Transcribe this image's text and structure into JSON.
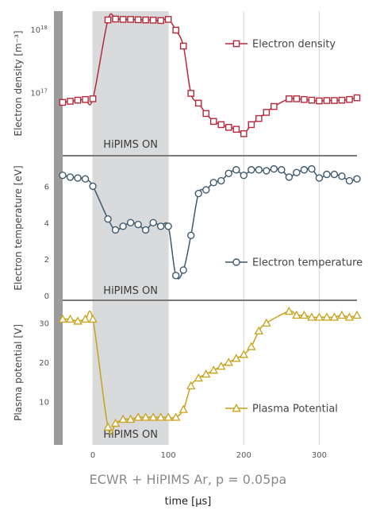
{
  "footer": {
    "title": "ECWR + HiPIMS Ar, p = 0.05pa",
    "xlabel": "time [µs]"
  },
  "chart_data": {
    "type": "line",
    "x_axis": {
      "label": "time [µs]",
      "range": [
        -40,
        350
      ],
      "ticks": [
        0,
        100,
        200,
        300
      ],
      "tick_labels": [
        "0",
        "100",
        "200",
        "300"
      ],
      "grid": true
    },
    "shaded_region": {
      "x": [
        0,
        100
      ],
      "label": "HiPIMS ON",
      "color": "#d9dadc"
    },
    "panels": [
      {
        "id": "density",
        "ylabel": "Electron density [m⁻³]",
        "yscale": "log",
        "ylim": [
          13000000000000000,
          2000000000000000000
        ],
        "yticks": [
          100000000000000000,
          1000000000000000000
        ],
        "ytick_labels": [
          {
            "base": "10",
            "exp": "17"
          },
          {
            "base": "10",
            "exp": "18"
          }
        ],
        "legend_position": "top-right",
        "shade_label": "HiPIMS ON",
        "series": [
          {
            "name": "Electron density",
            "color": "#b5293b",
            "marker": "square",
            "x": [
              -40,
              -30,
              -20,
              -10,
              0,
              20,
              30,
              40,
              50,
              60,
              70,
              80,
              90,
              100,
              110,
              120,
              130,
              140,
              150,
              160,
              170,
              180,
              190,
              200,
              210,
              220,
              230,
              240,
              260,
              270,
              280,
              290,
              300,
              310,
              320,
              330,
              340,
              350
            ],
            "y": [
              72000000000000000,
              75000000000000000,
              78000000000000000,
              80000000000000000,
              82000000000000000,
              1450000000000000000,
              1500000000000000000,
              1480000000000000000,
              1480000000000000000,
              1460000000000000000,
              1450000000000000000,
              1440000000000000000,
              1420000000000000000,
              1480000000000000000,
              1000000000000000000,
              560000000000000000,
              100000000000000000,
              70000000000000000,
              48000000000000000,
              36000000000000000,
              32000000000000000,
              29000000000000000,
              27000000000000000,
              23000000000000000,
              32000000000000000,
              40000000000000000,
              50000000000000000,
              62000000000000000,
              82000000000000000,
              82000000000000000,
              80000000000000000,
              78000000000000000,
              76000000000000000,
              77000000000000000,
              77000000000000000,
              78000000000000000,
              80000000000000000,
              85000000000000000
            ]
          }
        ]
      },
      {
        "id": "temperature",
        "ylabel": "Electron temperature [eV]",
        "yscale": "linear",
        "ylim": [
          0,
          7.5
        ],
        "yticks": [
          0,
          2,
          4,
          6
        ],
        "ytick_labels": [
          "0",
          "2",
          "4",
          "6"
        ],
        "legend_position": "bottom-right",
        "shade_label": "HiPIMS ON",
        "series": [
          {
            "name": "Electron temperature",
            "color": "#3d5a6e",
            "marker": "circle",
            "x": [
              -40,
              -30,
              -20,
              -10,
              0,
              20,
              30,
              40,
              50,
              60,
              70,
              80,
              90,
              100,
              110,
              120,
              130,
              140,
              150,
              160,
              170,
              180,
              190,
              200,
              210,
              220,
              230,
              240,
              250,
              260,
              270,
              280,
              290,
              300,
              310,
              320,
              330,
              340,
              350
            ],
            "y": [
              6.6,
              6.5,
              6.45,
              6.4,
              6.0,
              4.2,
              3.6,
              3.8,
              4.0,
              3.9,
              3.6,
              4.0,
              3.8,
              3.8,
              1.1,
              1.4,
              3.3,
              5.6,
              5.8,
              6.2,
              6.3,
              6.7,
              6.9,
              6.6,
              6.9,
              6.9,
              6.85,
              6.95,
              6.9,
              6.5,
              6.75,
              6.9,
              6.95,
              6.45,
              6.65,
              6.65,
              6.55,
              6.3,
              6.4
            ]
          }
        ]
      },
      {
        "id": "potential",
        "ylabel": "Plasma potential [V]",
        "yscale": "linear",
        "ylim": [
          0,
          35
        ],
        "yticks": [
          10,
          20,
          30
        ],
        "ytick_labels": [
          "10",
          "20",
          "30"
        ],
        "legend_position": "bottom-right",
        "shade_label": "HiPIMS ON",
        "series": [
          {
            "name": "Plasma Potential",
            "color": "#c9a11a",
            "marker": "triangle",
            "x": [
              -40,
              -30,
              -20,
              -10,
              0,
              20,
              30,
              40,
              50,
              60,
              70,
              80,
              90,
              100,
              110,
              120,
              130,
              140,
              150,
              160,
              170,
              180,
              190,
              200,
              210,
              220,
              230,
              260,
              270,
              280,
              290,
              300,
              310,
              320,
              330,
              340,
              350
            ],
            "y": [
              31,
              31,
              30.5,
              31,
              31,
              3.5,
              4.5,
              5.5,
              5.5,
              6,
              6,
              6,
              6,
              6,
              6,
              8,
              14,
              16,
              17,
              18,
              19,
              20,
              21,
              22,
              24,
              28,
              30,
              33,
              32,
              32,
              31.5,
              31.5,
              31.5,
              31.5,
              32,
              31.5,
              32
            ]
          }
        ]
      }
    ]
  }
}
